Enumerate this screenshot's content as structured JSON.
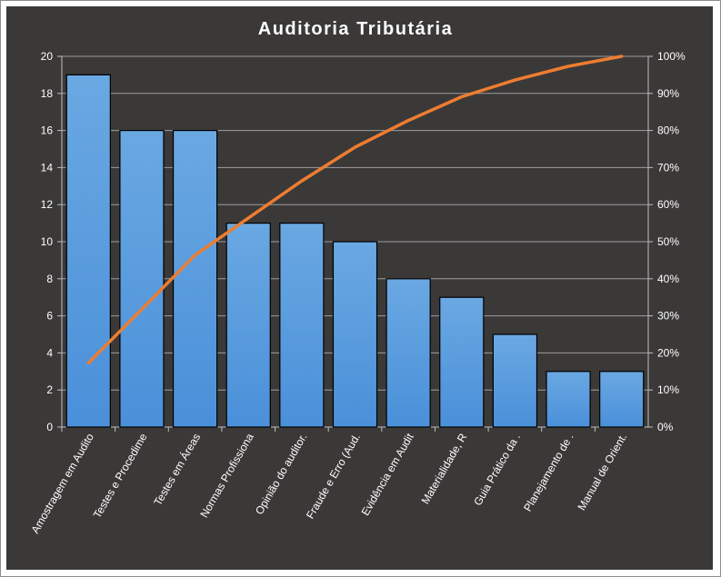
{
  "chart_data": {
    "type": "bar",
    "title": "Auditoria  Tributária",
    "categories": [
      "Amostragem em Audito",
      "Testes e Procedime",
      "Testes em Áreas",
      "Normas Profissiona",
      "Opinião do auditor.",
      "Fraude e Erro (Aud.",
      "Evidência em Audit",
      "Materialidade, R",
      "Guia Prático da .",
      "Planejamento de .",
      "Manual de Orient."
    ],
    "values": [
      19,
      16,
      16,
      11,
      11,
      10,
      8,
      7,
      5,
      3,
      3
    ],
    "cumulative_percent": [
      17.3,
      31.8,
      46.4,
      56.4,
      66.4,
      75.5,
      82.7,
      89.1,
      93.6,
      97.3,
      100
    ],
    "ylim": [
      0,
      20
    ],
    "y_ticks": [
      "0",
      "2",
      "4",
      "6",
      "8",
      "10",
      "12",
      "14",
      "16",
      "18",
      "20"
    ],
    "y2lim": [
      0,
      100
    ],
    "y2_ticks": [
      "0%",
      "10%",
      "20%",
      "30%",
      "40%",
      "50%",
      "60%",
      "70%",
      "80%",
      "90%",
      "100%"
    ],
    "xlabel": "",
    "ylabel": "",
    "grid": true,
    "legend": "none",
    "colors": {
      "bar": "#4a90d9",
      "bar_light": "#6aa8e2",
      "line": "#ed7d31",
      "background": "#3b3838",
      "gridline": "#bfbfbf",
      "text": "#ffffff"
    }
  }
}
